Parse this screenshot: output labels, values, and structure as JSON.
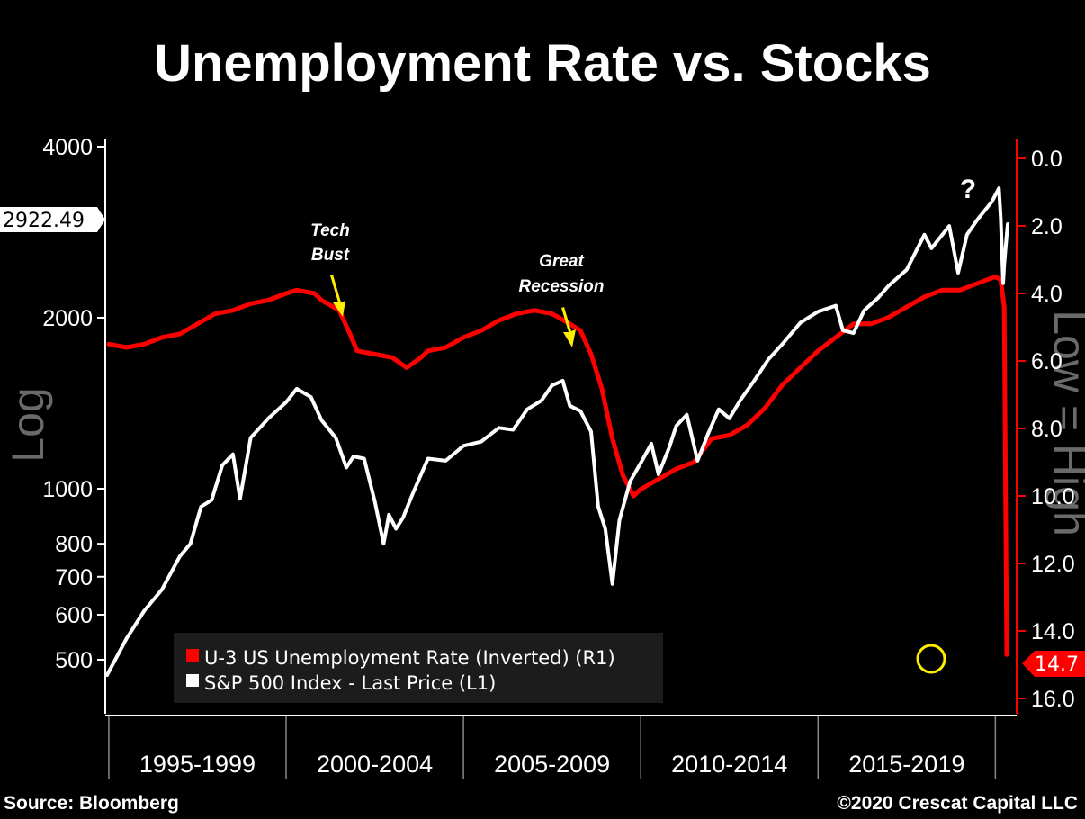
{
  "title": "Unemployment Rate vs. Stocks",
  "source": "Source: Bloomberg",
  "copyright": "©2020 Crescat Capital LLC",
  "colors": {
    "background": "#000000",
    "sp500": "#ffffff",
    "unemployment": "#ff0000",
    "arrow": "#ffee00",
    "circle": "#ffee00"
  },
  "chart_data": {
    "type": "line",
    "x_range": [
      1994.9,
      2020.6
    ],
    "x_periods": [
      "1995-1999",
      "2000-2004",
      "2005-2009",
      "2010-2014",
      "2015-2019"
    ],
    "y_left": {
      "label": "Log",
      "scale": "log",
      "range": [
        470,
        4000
      ],
      "ticks": [
        "4000",
        "2000",
        "1000",
        "800",
        "700",
        "600",
        "500"
      ],
      "tick_values": [
        4000,
        2000,
        1000,
        800,
        700,
        600,
        500
      ],
      "last_value_tag": "2922.49",
      "last_value": 2922.49
    },
    "y_right": {
      "label": "Low = High",
      "inverted": true,
      "range": [
        0,
        16
      ],
      "ticks": [
        "0.0",
        "2.0",
        "4.0",
        "6.0",
        "8.0",
        "10.0",
        "12.0",
        "14.0",
        "16.0"
      ],
      "tick_values": [
        0,
        2,
        4,
        6,
        8,
        10,
        12,
        14,
        16
      ],
      "last_value_tag": "14.7",
      "last_value": 14.7
    },
    "series": [
      {
        "name": "U-3 US Unemployment Rate (Inverted) (R1)",
        "axis": "right",
        "color": "#ff0000",
        "points": [
          [
            1995.0,
            5.5
          ],
          [
            1995.5,
            5.6
          ],
          [
            1996.0,
            5.5
          ],
          [
            1996.5,
            5.3
          ],
          [
            1997.0,
            5.2
          ],
          [
            1997.5,
            4.9
          ],
          [
            1998.0,
            4.6
          ],
          [
            1998.5,
            4.5
          ],
          [
            1999.0,
            4.3
          ],
          [
            1999.5,
            4.2
          ],
          [
            2000.0,
            4.0
          ],
          [
            2000.3,
            3.9
          ],
          [
            2000.8,
            4.0
          ],
          [
            2001.0,
            4.2
          ],
          [
            2001.5,
            4.5
          ],
          [
            2001.8,
            5.2
          ],
          [
            2002.0,
            5.7
          ],
          [
            2002.5,
            5.8
          ],
          [
            2003.0,
            5.9
          ],
          [
            2003.4,
            6.2
          ],
          [
            2003.8,
            5.9
          ],
          [
            2004.0,
            5.7
          ],
          [
            2004.5,
            5.6
          ],
          [
            2005.0,
            5.3
          ],
          [
            2005.5,
            5.1
          ],
          [
            2006.0,
            4.8
          ],
          [
            2006.5,
            4.6
          ],
          [
            2007.0,
            4.5
          ],
          [
            2007.5,
            4.6
          ],
          [
            2008.0,
            4.9
          ],
          [
            2008.3,
            5.1
          ],
          [
            2008.6,
            5.8
          ],
          [
            2008.9,
            6.8
          ],
          [
            2009.2,
            8.3
          ],
          [
            2009.5,
            9.4
          ],
          [
            2009.8,
            10.0
          ],
          [
            2010.0,
            9.8
          ],
          [
            2010.5,
            9.5
          ],
          [
            2011.0,
            9.2
          ],
          [
            2011.5,
            9.0
          ],
          [
            2012.0,
            8.3
          ],
          [
            2012.5,
            8.2
          ],
          [
            2013.0,
            7.9
          ],
          [
            2013.5,
            7.4
          ],
          [
            2014.0,
            6.7
          ],
          [
            2014.5,
            6.2
          ],
          [
            2015.0,
            5.7
          ],
          [
            2015.5,
            5.3
          ],
          [
            2016.0,
            4.9
          ],
          [
            2016.5,
            4.9
          ],
          [
            2017.0,
            4.7
          ],
          [
            2017.5,
            4.4
          ],
          [
            2018.0,
            4.1
          ],
          [
            2018.5,
            3.9
          ],
          [
            2019.0,
            3.9
          ],
          [
            2019.5,
            3.7
          ],
          [
            2020.0,
            3.5
          ],
          [
            2020.15,
            3.6
          ],
          [
            2020.25,
            4.4
          ],
          [
            2020.32,
            14.7
          ]
        ]
      },
      {
        "name": "S&P 500 Index - Last Price (L1)",
        "axis": "left",
        "color": "#ffffff",
        "points": [
          [
            1994.95,
            470
          ],
          [
            1995.5,
            545
          ],
          [
            1996.0,
            610
          ],
          [
            1996.5,
            665
          ],
          [
            1997.0,
            760
          ],
          [
            1997.3,
            800
          ],
          [
            1997.6,
            930
          ],
          [
            1997.9,
            955
          ],
          [
            1998.2,
            1100
          ],
          [
            1998.5,
            1150
          ],
          [
            1998.7,
            960
          ],
          [
            1999.0,
            1230
          ],
          [
            1999.5,
            1330
          ],
          [
            2000.0,
            1420
          ],
          [
            2000.3,
            1500
          ],
          [
            2000.7,
            1450
          ],
          [
            2001.0,
            1320
          ],
          [
            2001.4,
            1230
          ],
          [
            2001.7,
            1090
          ],
          [
            2001.9,
            1140
          ],
          [
            2002.2,
            1130
          ],
          [
            2002.5,
            950
          ],
          [
            2002.75,
            800
          ],
          [
            2002.9,
            900
          ],
          [
            2003.1,
            850
          ],
          [
            2003.3,
            890
          ],
          [
            2003.6,
            990
          ],
          [
            2004.0,
            1130
          ],
          [
            2004.5,
            1120
          ],
          [
            2005.0,
            1190
          ],
          [
            2005.5,
            1210
          ],
          [
            2006.0,
            1280
          ],
          [
            2006.4,
            1270
          ],
          [
            2006.8,
            1380
          ],
          [
            2007.2,
            1430
          ],
          [
            2007.5,
            1520
          ],
          [
            2007.8,
            1550
          ],
          [
            2008.0,
            1400
          ],
          [
            2008.3,
            1370
          ],
          [
            2008.6,
            1260
          ],
          [
            2008.8,
            930
          ],
          [
            2009.0,
            850
          ],
          [
            2009.2,
            680
          ],
          [
            2009.4,
            880
          ],
          [
            2009.7,
            1030
          ],
          [
            2010.0,
            1110
          ],
          [
            2010.3,
            1200
          ],
          [
            2010.5,
            1060
          ],
          [
            2010.8,
            1180
          ],
          [
            2011.0,
            1290
          ],
          [
            2011.3,
            1350
          ],
          [
            2011.6,
            1120
          ],
          [
            2011.9,
            1250
          ],
          [
            2012.2,
            1380
          ],
          [
            2012.5,
            1330
          ],
          [
            2012.8,
            1430
          ],
          [
            2013.2,
            1550
          ],
          [
            2013.6,
            1690
          ],
          [
            2014.0,
            1800
          ],
          [
            2014.5,
            1960
          ],
          [
            2015.0,
            2050
          ],
          [
            2015.5,
            2100
          ],
          [
            2015.7,
            1900
          ],
          [
            2016.0,
            1880
          ],
          [
            2016.3,
            2060
          ],
          [
            2016.7,
            2170
          ],
          [
            2017.0,
            2280
          ],
          [
            2017.5,
            2430
          ],
          [
            2018.0,
            2800
          ],
          [
            2018.2,
            2650
          ],
          [
            2018.7,
            2900
          ],
          [
            2018.95,
            2400
          ],
          [
            2019.2,
            2800
          ],
          [
            2019.5,
            2980
          ],
          [
            2019.9,
            3200
          ],
          [
            2020.1,
            3380
          ],
          [
            2020.15,
            3000
          ],
          [
            2020.22,
            2300
          ],
          [
            2020.25,
            2480
          ],
          [
            2020.32,
            2800
          ],
          [
            2020.35,
            2922.49
          ]
        ]
      }
    ],
    "annotations": [
      {
        "text_lines": [
          "Tech",
          "Bust"
        ],
        "x": 2002.0
      },
      {
        "text_lines": [
          "Great",
          "Recession"
        ],
        "x": 2008.5
      },
      {
        "text": "?",
        "x": 2020.9
      }
    ],
    "legend": {
      "placement": "bottom-left",
      "items": [
        "U-3 US Unemployment Rate (Inverted) (R1)",
        "S&P 500 Index - Last Price (L1)"
      ]
    },
    "grid": false
  }
}
